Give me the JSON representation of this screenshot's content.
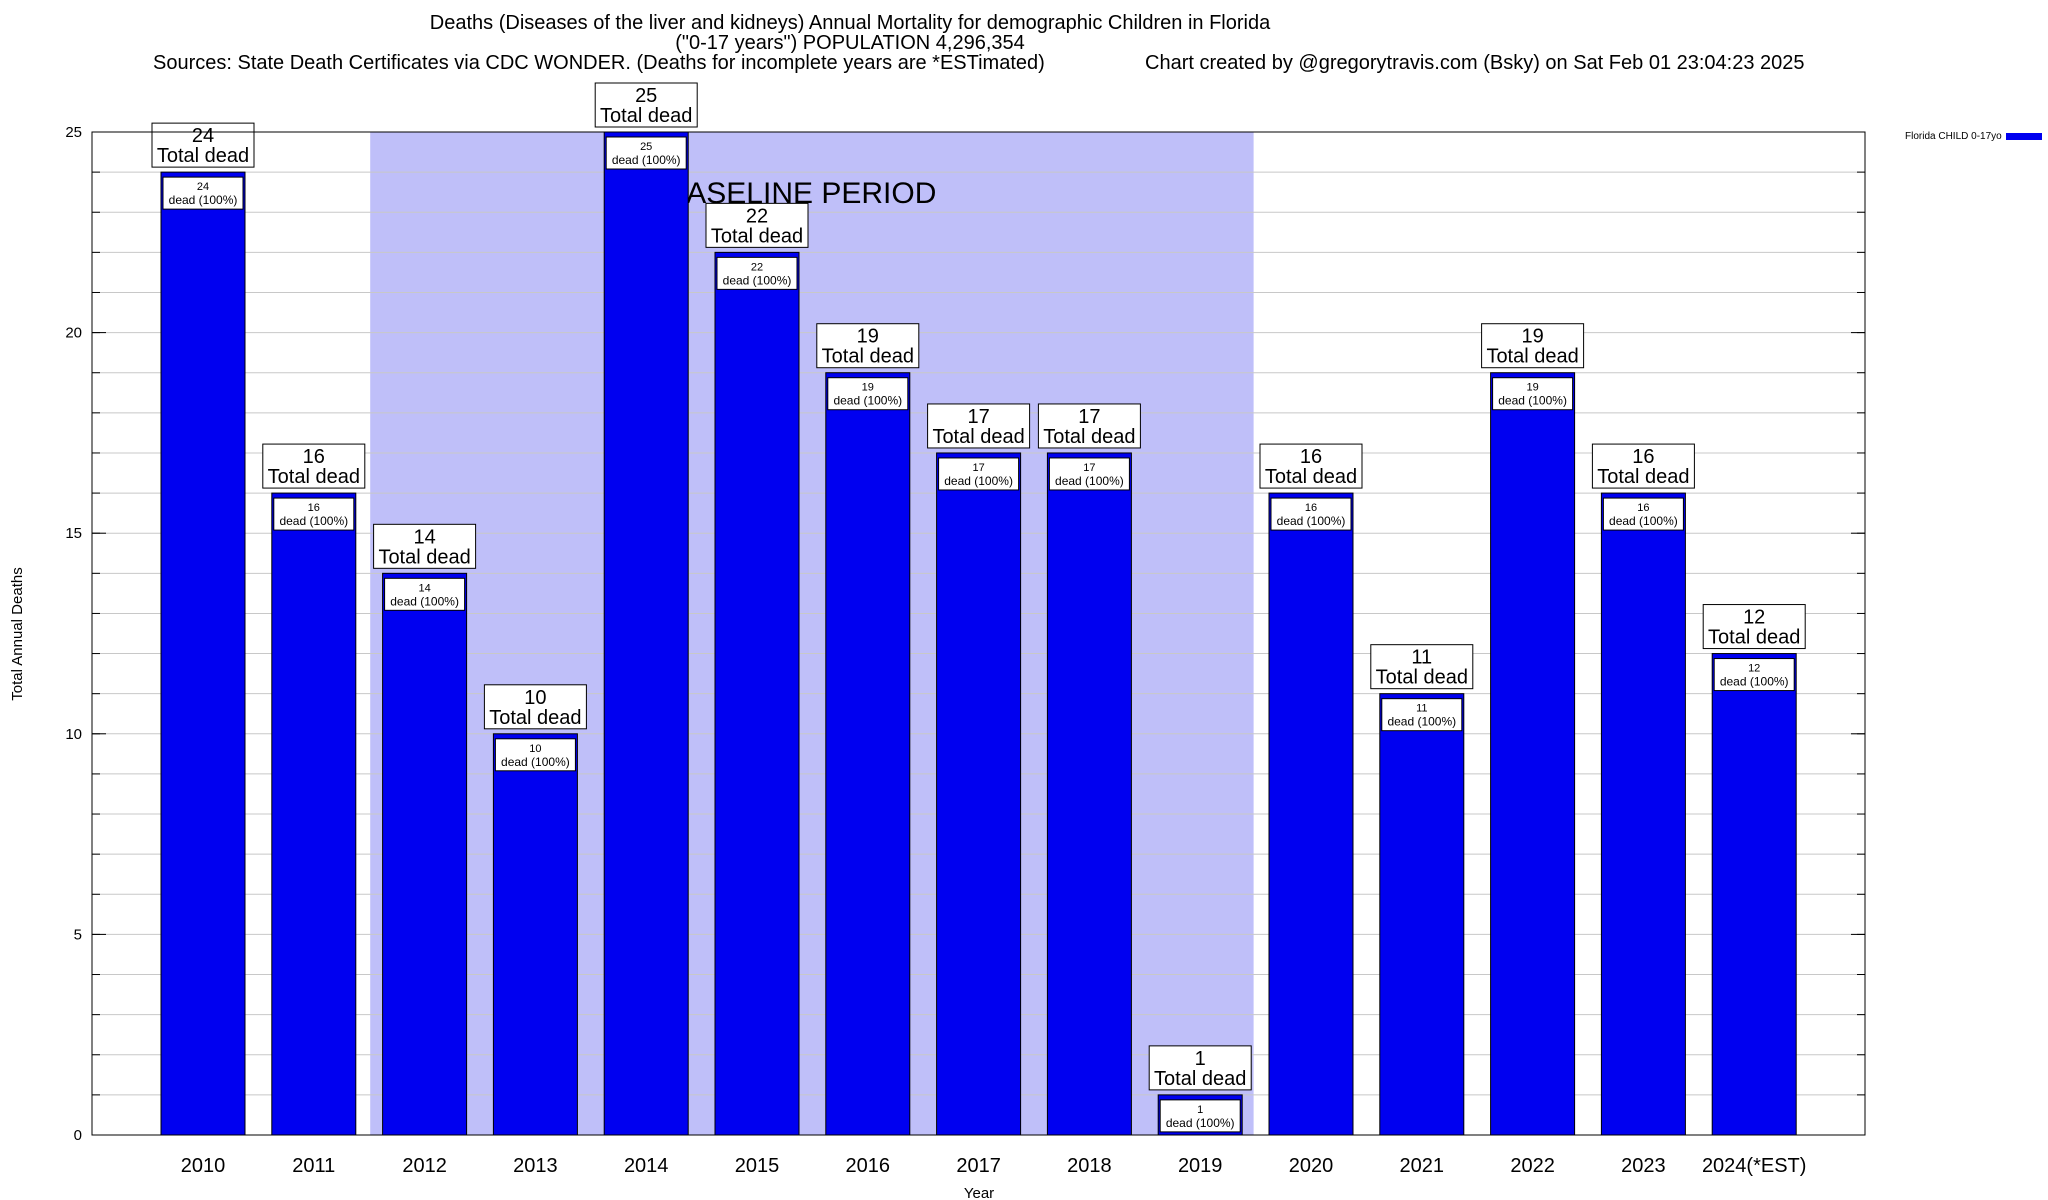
{
  "header": {
    "title": "Deaths (Diseases of the liver and kidneys) Annual Mortality for demographic Children in Florida",
    "subtitle": "(\"0-17 years\") POPULATION 4,296,354",
    "sources": "Sources: State Death Certificates via CDC WONDER. (Deaths for incomplete years are *ESTimated)",
    "credit": "Chart created by @gregorytravis.com (Bsky) on Sat Feb 01 23:04:23 2025"
  },
  "legend": {
    "label": "Florida CHILD 0-17yo"
  },
  "colors": {
    "bar": "#0000f0",
    "baseline_band": "#bfbff9",
    "grid": "#c8c8c8"
  },
  "chart_data": {
    "type": "bar",
    "title": "Deaths (Diseases of the liver and kidneys) Annual Mortality for demographic Children in Florida",
    "xlabel": "Year",
    "ylabel": "Total Annual Deaths",
    "ylim": [
      0,
      25
    ],
    "yticks": [
      0,
      5,
      10,
      15,
      20,
      25
    ],
    "grid": true,
    "legend_position": "top-right",
    "categories": [
      "2010",
      "2011",
      "2012",
      "2013",
      "2014",
      "2015",
      "2016",
      "2017",
      "2018",
      "2019",
      "2020",
      "2021",
      "2022",
      "2023",
      "2024(*EST)"
    ],
    "series": [
      {
        "name": "Florida CHILD 0-17yo",
        "values": [
          24,
          16,
          14,
          10,
          25,
          22,
          19,
          17,
          17,
          1,
          16,
          11,
          19,
          16,
          12
        ]
      }
    ],
    "total_label": "Total dead",
    "inner_label": "dead (100%)",
    "baseline": {
      "label": "BASELINE PERIOD",
      "start": "2012",
      "end": "2019"
    }
  }
}
